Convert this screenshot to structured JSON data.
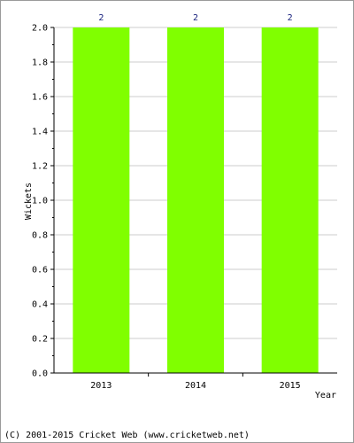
{
  "chart_data": {
    "type": "bar",
    "categories": [
      "2013",
      "2014",
      "2015"
    ],
    "values": [
      2,
      2,
      2
    ],
    "data_labels": [
      "2",
      "2",
      "2"
    ],
    "title": "",
    "xlabel": "Year",
    "ylabel": "Wickets",
    "ylim": [
      0,
      2
    ],
    "yticks": [
      "0.0",
      "0.2",
      "0.4",
      "0.6",
      "0.8",
      "1.0",
      "1.2",
      "1.4",
      "1.6",
      "1.8",
      "2.0"
    ],
    "grid": true,
    "bar_color": "#80ff00",
    "grid_color": "#cccccc"
  },
  "footer": {
    "copyright": "(C) 2001-2015 Cricket Web (www.cricketweb.net)"
  }
}
